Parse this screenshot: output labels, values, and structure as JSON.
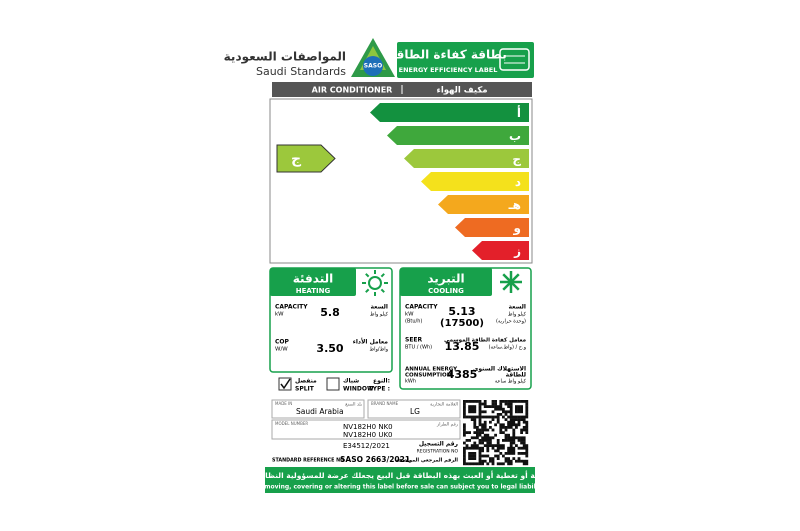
{
  "header": {
    "org_ar": "المواصفات السعودية",
    "org_en": "Saudi Standards",
    "logo": "SASO",
    "title_ar": "بطاقة كفاءة الطاقة",
    "title_en": "ENERGY EFFICIENCY LABEL"
  },
  "product": {
    "en": "AIR CONDITIONER",
    "ar": "مكيف الهواء"
  },
  "ratings": {
    "letters": [
      "أ",
      "ب",
      "ج",
      "د",
      "هـ",
      "و",
      "ز"
    ],
    "colors": [
      "#13913f",
      "#3fa83c",
      "#9cc83c",
      "#f4e11c",
      "#f4a81d",
      "#ee6b22",
      "#e3202a"
    ],
    "selected": 2
  },
  "heating": {
    "title_ar": "التدفئة",
    "title_en": "HEATING",
    "capacity": {
      "label": "CAPACITY",
      "unit": "kW",
      "label_ar": "السعة",
      "unit_ar": "كيلو واط",
      "value": "5.8"
    },
    "cop": {
      "label": "COP",
      "unit": "W/W",
      "label_ar": "معامل الأداء",
      "unit_ar": "واط/واط",
      "value": "3.50"
    }
  },
  "cooling": {
    "title_ar": "التبريد",
    "title_en": "COOLING",
    "capacity": {
      "label": "CAPACITY",
      "unit": "kW",
      "unit2": "(Btu/h)",
      "label_ar": "السعة",
      "unit_ar": "كيلو واط",
      "unit2_ar": "(وحدة حرارية)",
      "value": "5.13",
      "value2": "(17500)"
    },
    "seer": {
      "label": "SEER",
      "unit": "BTU / (Wh)",
      "label_ar": "معامل كفاءة الطاقة الموسمي",
      "unit_ar": "و.ح / (واط.ساعة)",
      "value": "13.85"
    },
    "energy": {
      "label": "ANNUAL ENERGY",
      "label2": "CONSUMPTION",
      "unit": "kWh",
      "label_ar": "الاستهلاك السنوي",
      "label2_ar": "للطاقة",
      "unit_ar": "كيلو واط ساعة",
      "value": "4385"
    }
  },
  "type": {
    "label_ar": "النوع:",
    "label_en": "TYPE :",
    "split_ar": "منفصل",
    "split_en": "SPLIT",
    "window_ar": "شباك",
    "window_en": "WINDOW"
  },
  "details": {
    "made_in_label": "MADE IN",
    "made_in_label_ar": "بلد الصنع",
    "made_in": "Saudi Arabia",
    "brand_label": "BRAND NAME",
    "brand_label_ar": "العلامة التجارية",
    "brand": "LG",
    "model_label": "MODEL NUMBER",
    "model_label_ar": "رقم الطراز",
    "models": [
      "NV182H0 NK0",
      "NV182H0 UK0"
    ],
    "registration": "E34512/2021",
    "registration_label_ar": "رقم التسجيل",
    "registration_label": "REGISTRATION NO",
    "standard_label": "STANDARD REFERENCE NO",
    "standard": "SASO 2663/2021",
    "standard_label_ar": "الرقم المرجعي المواصفة"
  },
  "footer": {
    "ar": "إزالة أو تغطية أو العبث بهذه البطاقة قبل البيع يجعلك عرضة للمسؤولية النظامية",
    "en": "Removing, covering or altering this label before sale can subject you to legal liability"
  }
}
